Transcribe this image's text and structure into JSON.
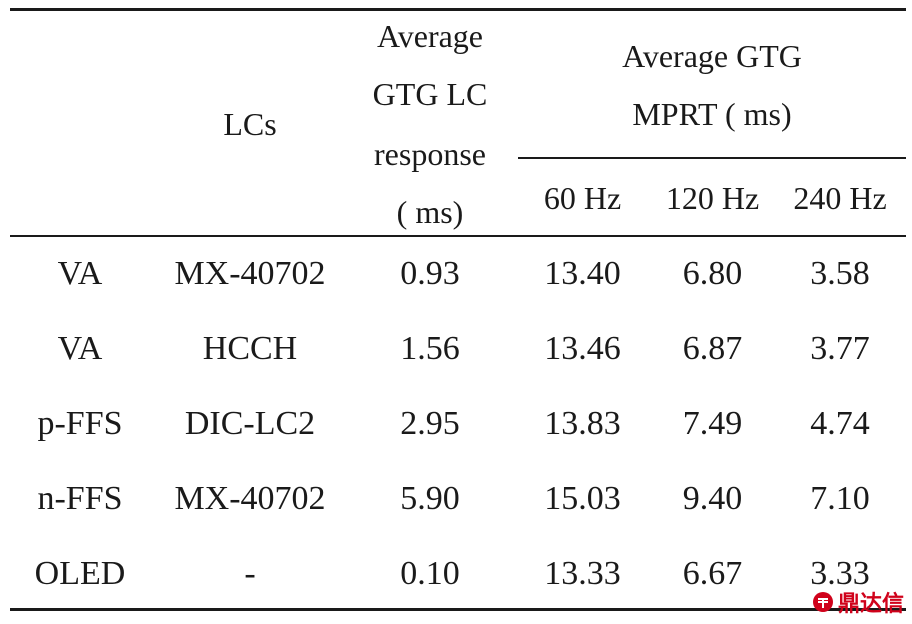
{
  "table": {
    "header": {
      "lcs": "LCs",
      "lc_response": [
        "Average",
        "GTG LC",
        "response",
        "( ms)"
      ],
      "mprt_group": [
        "Average GTG",
        "MPRT ( ms)"
      ],
      "freqs": [
        "60 Hz",
        "120 Hz",
        "240 Hz"
      ]
    },
    "rows": [
      {
        "type": "VA",
        "lc": "MX-40702",
        "resp": "0.93",
        "f60": "13.40",
        "f120": "6.80",
        "f240": "3.58"
      },
      {
        "type": "VA",
        "lc": "HCCH",
        "resp": "1.56",
        "f60": "13.46",
        "f120": "6.87",
        "f240": "3.77"
      },
      {
        "type": "p-FFS",
        "lc": "DIC-LC2",
        "resp": "2.95",
        "f60": "13.83",
        "f120": "7.49",
        "f240": "4.74"
      },
      {
        "type": "n-FFS",
        "lc": "MX-40702",
        "resp": "5.90",
        "f60": "15.03",
        "f120": "9.40",
        "f240": "7.10"
      },
      {
        "type": "OLED",
        "lc": "-",
        "resp": "0.10",
        "f60": "13.33",
        "f120": "6.67",
        "f240": "3.33"
      }
    ]
  },
  "watermark": {
    "text": "鼎达信",
    "icon": "logo-icon",
    "color": "#d0021b"
  }
}
